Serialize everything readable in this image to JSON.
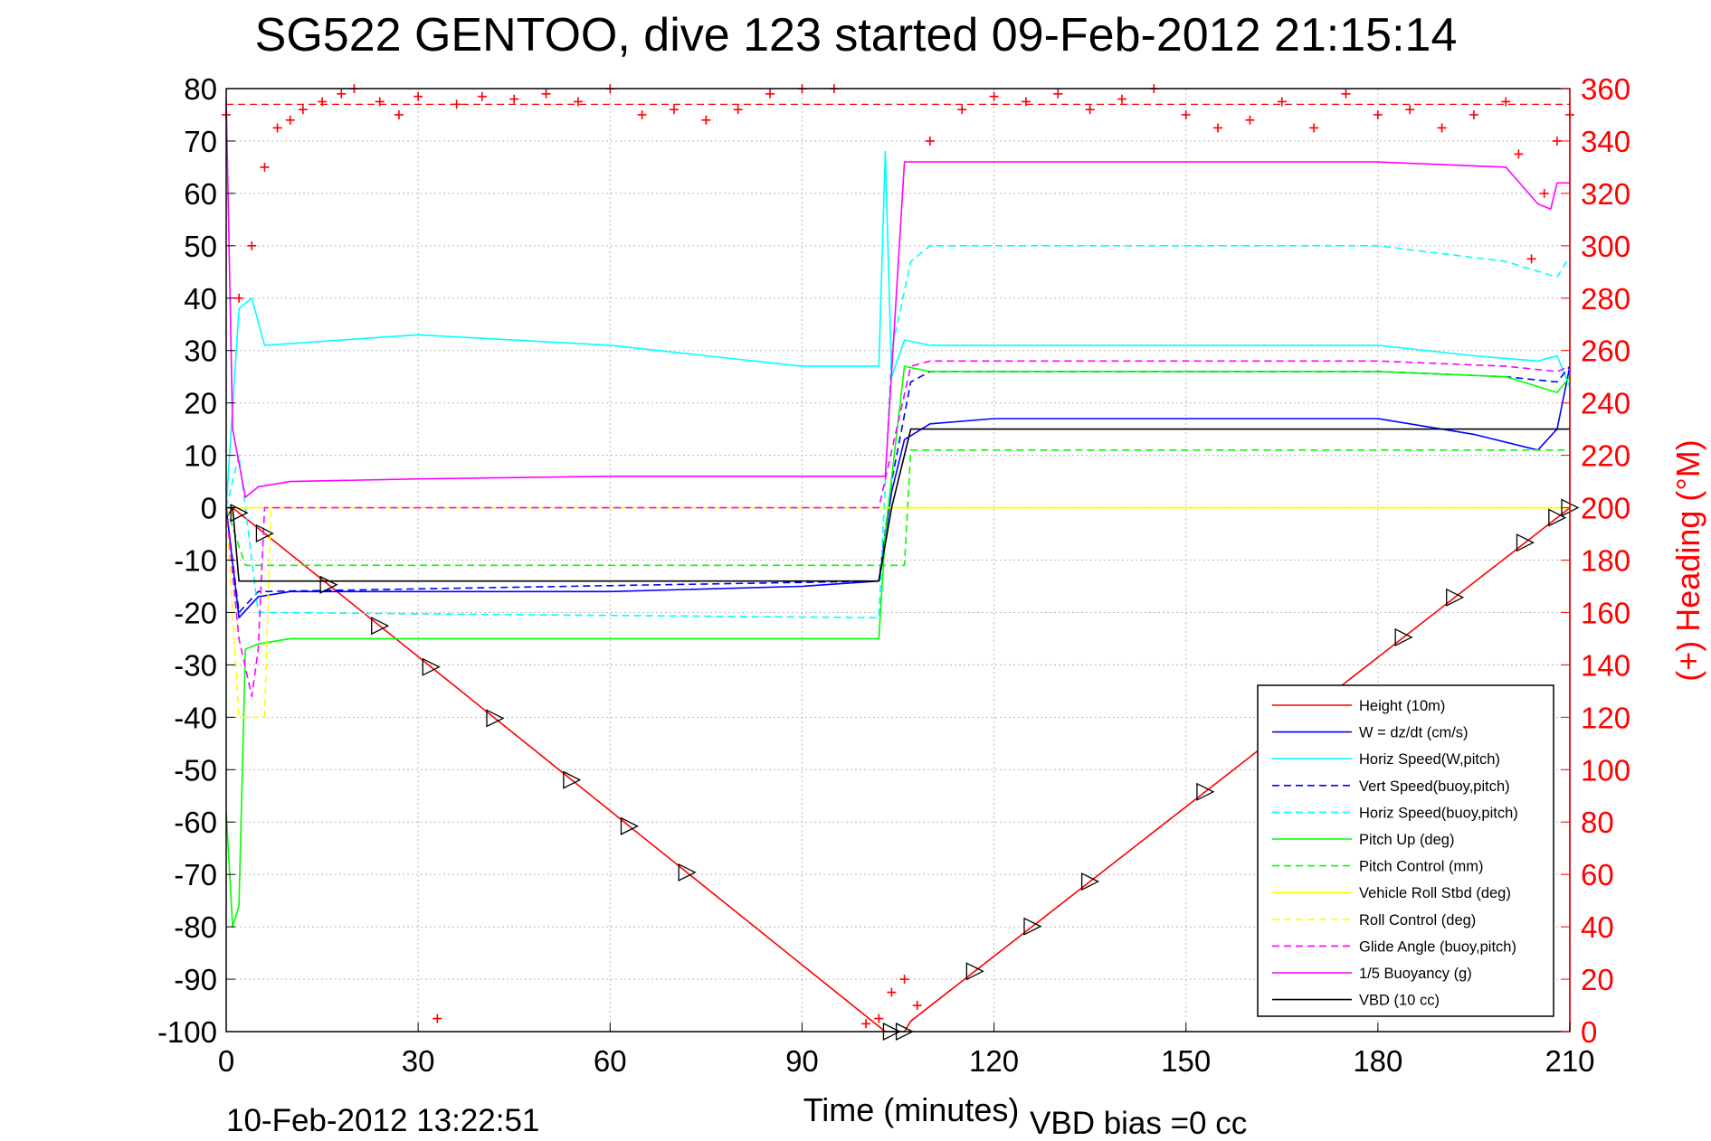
{
  "title": "SG522 GENTOO, dive 123 started 09-Feb-2012 21:15:14",
  "footer": {
    "end_time": "10-Feb-2012 13:22:51",
    "vbd_bias": "VBD bias =0 cc"
  },
  "chart_data": {
    "type": "line",
    "xlabel": "Time (minutes)",
    "ylabel": "",
    "y2label": "(+) Heading (°M)",
    "xlim": [
      0,
      210
    ],
    "ylim": [
      -100,
      80
    ],
    "y2lim": [
      0,
      360
    ],
    "x_ticks": [
      "0",
      "30",
      "60",
      "90",
      "120",
      "150",
      "180",
      "210"
    ],
    "y_ticks": [
      "80",
      "70",
      "60",
      "50",
      "40",
      "30",
      "20",
      "10",
      "0",
      "-10",
      "-20",
      "-30",
      "-40",
      "-50",
      "-60",
      "-70",
      "-80",
      "-90",
      "-100"
    ],
    "y2_ticks": [
      "360",
      "340",
      "320",
      "300",
      "280",
      "260",
      "240",
      "220",
      "200",
      "180",
      "160",
      "140",
      "120",
      "100",
      "80",
      "60",
      "40",
      "20",
      "0"
    ],
    "grid": true,
    "legend_position": "bottom-right",
    "colors": {
      "height": "#ff0000",
      "w": "#0000ff",
      "horiz_speed": "#00ffff",
      "pitch": "#00ff00",
      "roll": "#ffff00",
      "buoyancy": "#ff00ff",
      "vbd": "#000000",
      "heading": "#ff0000"
    },
    "series": [
      {
        "name": "Height (10m)",
        "color": "#ff0000",
        "style": "solid",
        "x": [
          0,
          1,
          103,
          104,
          105,
          106,
          107,
          210
        ],
        "values": [
          -2,
          0,
          -100,
          -100,
          -100,
          -100,
          -98,
          0
        ]
      },
      {
        "name": "W = dz/dt (cm/s)",
        "color": "#0000ff",
        "style": "solid",
        "x": [
          0,
          2,
          5,
          10,
          30,
          60,
          90,
          102,
          104,
          106,
          110,
          120,
          150,
          180,
          195,
          205,
          208,
          210
        ],
        "values": [
          0,
          -21,
          -17,
          -16,
          -16,
          -16,
          -15,
          -14,
          3,
          13,
          16,
          17,
          17,
          17,
          14,
          11,
          15,
          27
        ]
      },
      {
        "name": "Horiz Speed(W,pitch)",
        "color": "#00ffff",
        "style": "solid",
        "x": [
          0,
          2,
          4,
          6,
          30,
          60,
          90,
          102,
          103,
          104,
          106,
          110,
          120,
          150,
          180,
          195,
          205,
          208,
          210
        ],
        "values": [
          0,
          38,
          40,
          31,
          33,
          31,
          27,
          27,
          68,
          25,
          32,
          31,
          31,
          31,
          31,
          29,
          28,
          29,
          23
        ]
      },
      {
        "name": "Vert Speed(buoy,pitch)",
        "color": "#0000ff",
        "style": "dashed",
        "x": [
          0,
          2,
          5,
          102,
          104,
          107,
          110,
          150,
          180,
          200,
          208,
          210
        ],
        "values": [
          0,
          -20,
          -16,
          -14,
          5,
          24,
          26,
          26,
          26,
          25,
          24,
          27
        ]
      },
      {
        "name": "Horiz Speed(buoy,pitch)",
        "color": "#00ffff",
        "style": "dashed",
        "x": [
          0,
          2,
          5,
          102,
          104,
          107,
          110,
          150,
          180,
          200,
          208,
          210
        ],
        "values": [
          0,
          10,
          -20,
          -21,
          30,
          47,
          50,
          50,
          50,
          47,
          44,
          48
        ]
      },
      {
        "name": "Pitch Up (deg)",
        "color": "#00ff00",
        "style": "solid",
        "x": [
          0,
          1,
          2,
          3,
          5,
          10,
          30,
          60,
          90,
          102,
          103,
          106,
          110,
          150,
          180,
          200,
          208,
          210
        ],
        "values": [
          -58,
          -80,
          -76,
          -27,
          -26,
          -25,
          -25,
          -25,
          -25,
          -25,
          -5,
          27,
          26,
          26,
          26,
          25,
          22,
          25
        ]
      },
      {
        "name": "Pitch Control (mm)",
        "color": "#00ff00",
        "style": "dashed",
        "x": [
          0,
          3,
          102,
          106,
          107,
          150,
          180,
          205,
          210
        ],
        "values": [
          0,
          -11,
          -11,
          -11,
          11,
          11,
          11,
          11,
          11
        ]
      },
      {
        "name": "Vehicle Roll Stbd (deg)",
        "color": "#ffff00",
        "style": "solid",
        "x": [
          0,
          30,
          60,
          90,
          105,
          150,
          180,
          210
        ],
        "values": [
          0,
          0,
          0,
          0,
          0,
          0,
          0,
          0
        ]
      },
      {
        "name": "Roll Control (deg)",
        "color": "#ffff00",
        "style": "dashed",
        "x": [
          0,
          2,
          3,
          6,
          7,
          30,
          60,
          102,
          110,
          150,
          180,
          210
        ],
        "values": [
          0,
          -40,
          -40,
          -40,
          0,
          0,
          0,
          0,
          0,
          0,
          0,
          0
        ]
      },
      {
        "name": "Glide Angle (buoy,pitch)",
        "color": "#ff00ff",
        "style": "dashed",
        "x": [
          0,
          2,
          4,
          5,
          6,
          30,
          60,
          102,
          107,
          110,
          150,
          180,
          200,
          208,
          210
        ],
        "values": [
          0,
          -25,
          -36,
          -27,
          0,
          0,
          0,
          0,
          27,
          28,
          28,
          28,
          27,
          26,
          27
        ]
      },
      {
        "name": "1/5 Buoyancy (g)",
        "color": "#ff00ff",
        "style": "solid",
        "x": [
          0,
          1,
          3,
          5,
          10,
          30,
          60,
          102,
          103,
          106,
          110,
          150,
          180,
          200,
          205,
          207,
          208,
          210
        ],
        "values": [
          78,
          15,
          2,
          4,
          5,
          5.5,
          6,
          6,
          6,
          66,
          66,
          66,
          66,
          65,
          58,
          57,
          62,
          62
        ]
      },
      {
        "name": "VBD (10 cc)",
        "color": "#000000",
        "style": "solid",
        "x": [
          0,
          1,
          2,
          102,
          104,
          107,
          210
        ],
        "values": [
          0,
          0,
          -14,
          -14,
          0,
          15,
          15
        ]
      }
    ],
    "heading": {
      "name": "(+) Heading (°M)",
      "color": "#ff0000",
      "style": "plus-markers",
      "mean": 354,
      "x": [
        0,
        2,
        4,
        6,
        8,
        10,
        12,
        15,
        18,
        20,
        24,
        27,
        30,
        33,
        36,
        40,
        45,
        50,
        55,
        60,
        65,
        70,
        75,
        80,
        85,
        90,
        95,
        100,
        102,
        104,
        106,
        108,
        110,
        115,
        120,
        125,
        130,
        135,
        140,
        145,
        150,
        155,
        160,
        165,
        170,
        175,
        180,
        185,
        190,
        195,
        200,
        202,
        204,
        206,
        208,
        210
      ],
      "values": [
        350,
        280,
        300,
        330,
        345,
        348,
        352,
        355,
        358,
        360,
        355,
        350,
        357,
        5,
        354,
        357,
        356,
        358,
        355,
        360,
        350,
        352,
        348,
        352,
        358,
        360,
        360,
        3,
        5,
        15,
        20,
        10,
        340,
        352,
        357,
        355,
        358,
        352,
        356,
        360,
        350,
        345,
        348,
        355,
        345,
        358,
        350,
        352,
        345,
        350,
        355,
        335,
        295,
        320,
        340,
        350
      ]
    }
  }
}
